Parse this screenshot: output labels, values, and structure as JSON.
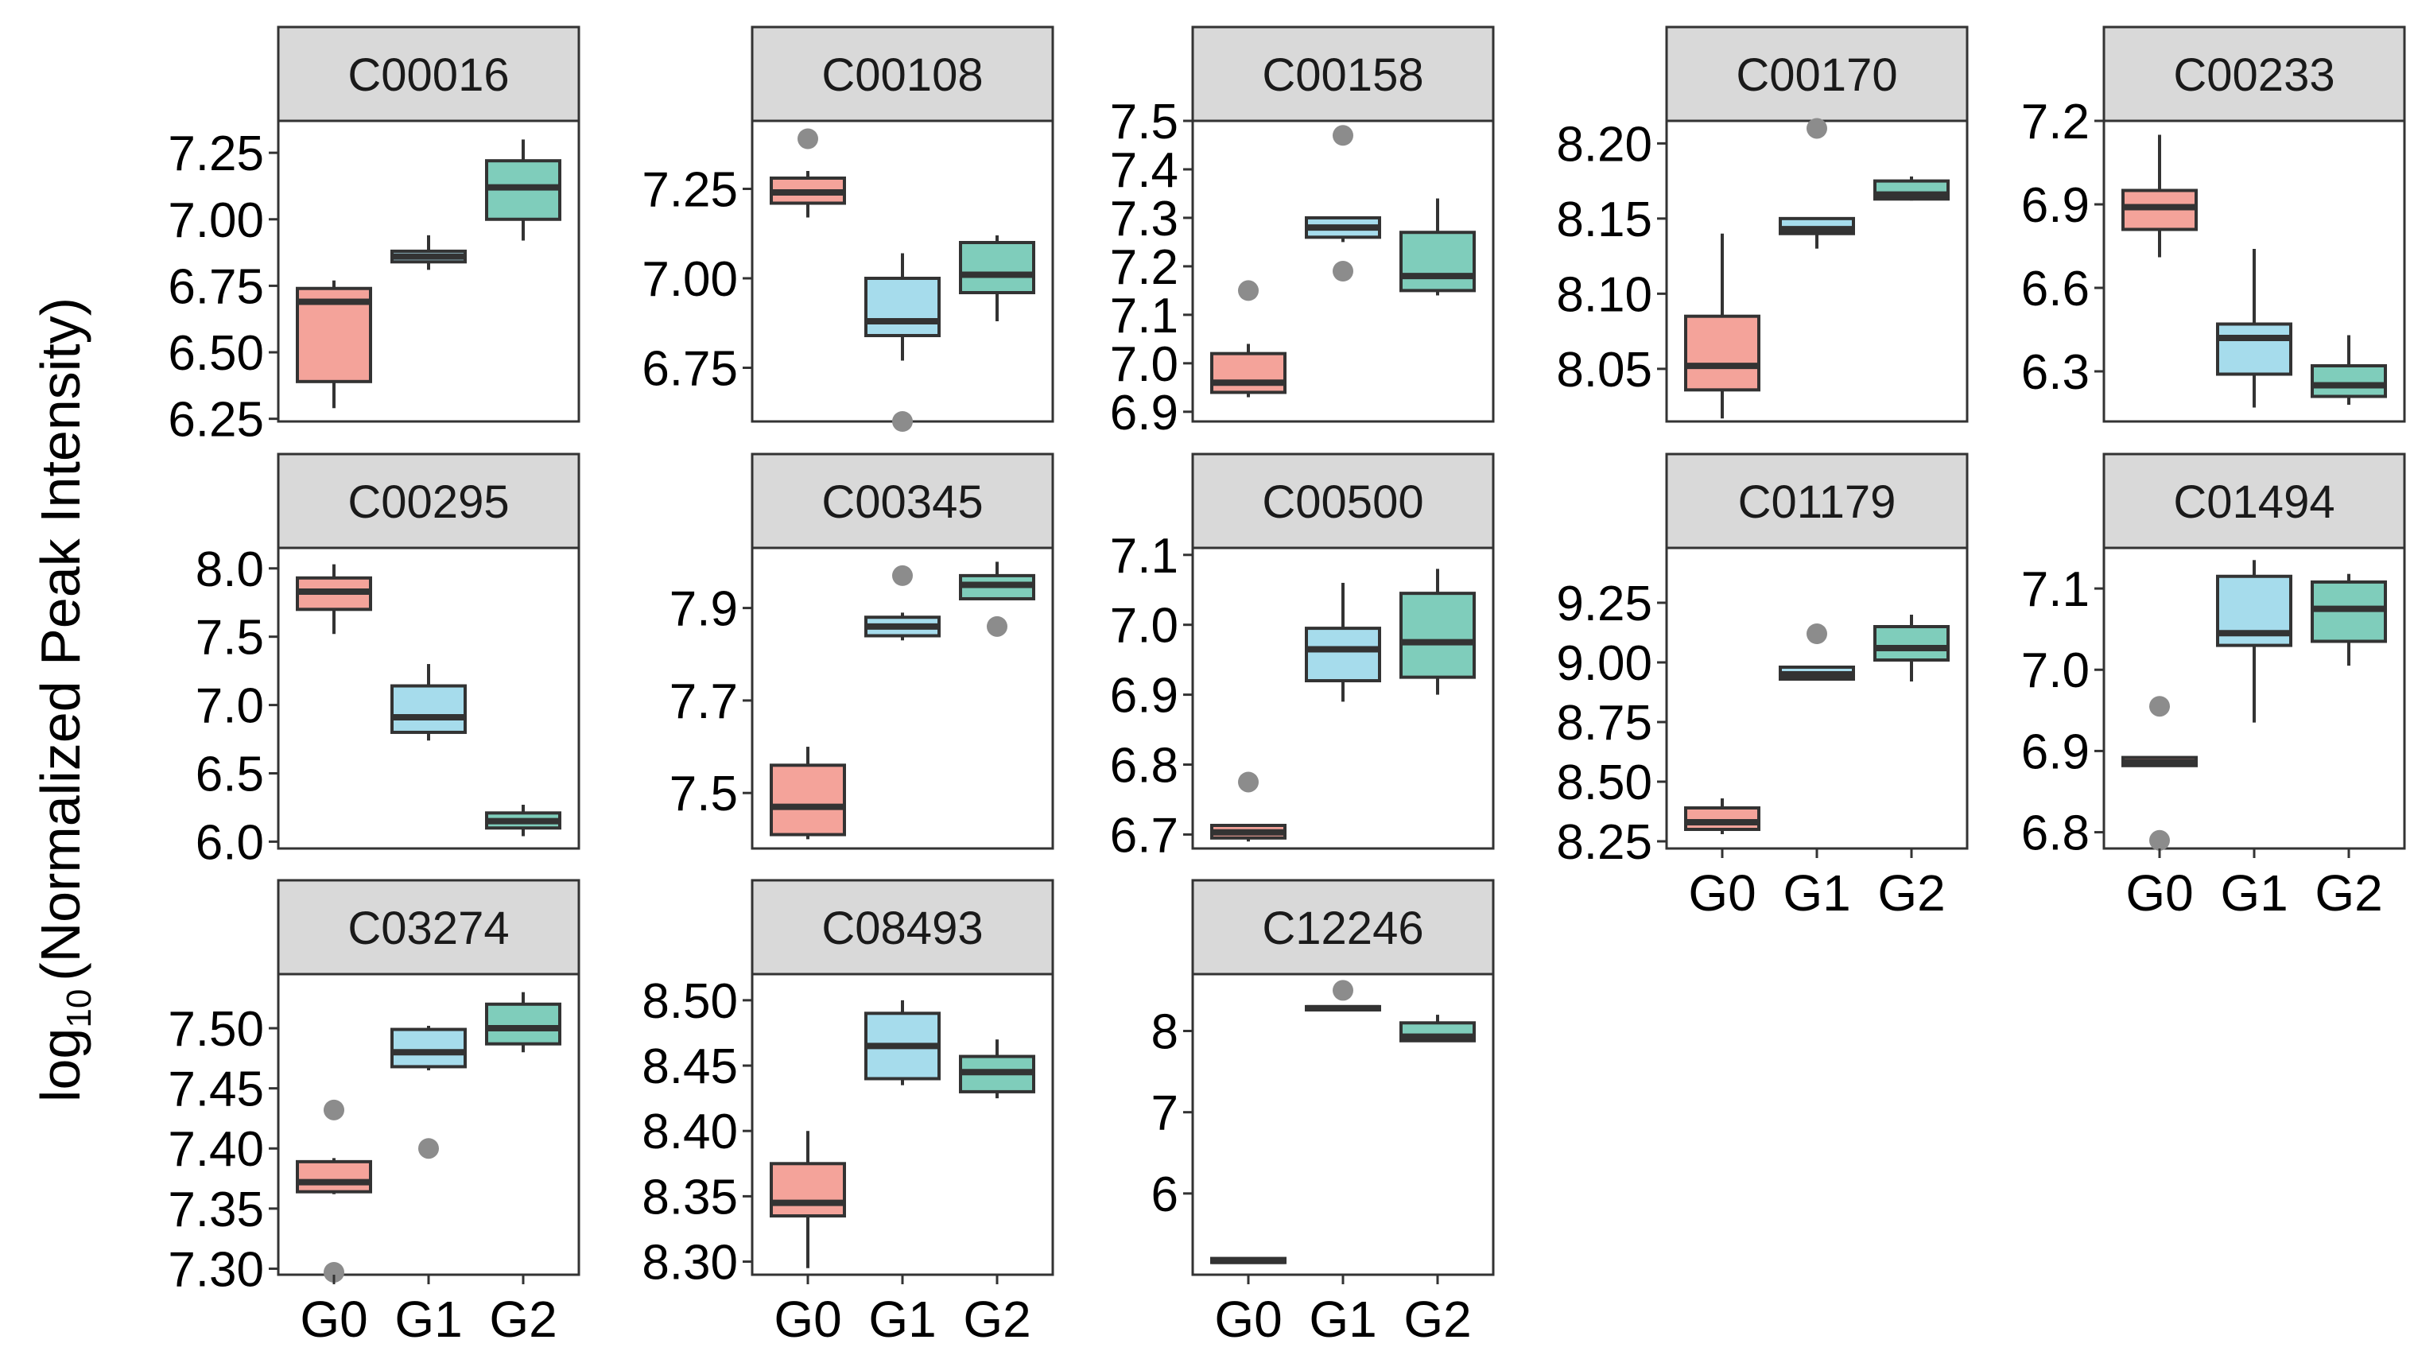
{
  "chart_data": {
    "type": "boxplot",
    "ylabel_prefix": "log",
    "ylabel_subscript": "10",
    "ylabel_rest": "(Normalized Peak Intensity)",
    "groups": [
      "G0",
      "G1",
      "G2"
    ],
    "group_colors": {
      "G0": "#f4a39a",
      "G1": "#a6dcec",
      "G2": "#7fcdbb"
    },
    "panels": [
      {
        "title": "C00016",
        "ylim": [
          6.24,
          7.37
        ],
        "ticks": [
          6.25,
          6.5,
          6.75,
          7.0,
          7.25
        ],
        "tick_labels": [
          "6.25",
          "6.50",
          "6.75",
          "7.00",
          "7.25"
        ],
        "boxes": [
          {
            "group": "G0",
            "wlo": 6.29,
            "q1": 6.39,
            "med": 6.69,
            "q3": 6.74,
            "whi": 6.77,
            "outliers": []
          },
          {
            "group": "G1",
            "wlo": 6.81,
            "q1": 6.84,
            "med": 6.86,
            "q3": 6.88,
            "whi": 6.94,
            "outliers": []
          },
          {
            "group": "G2",
            "wlo": 6.92,
            "q1": 7.0,
            "med": 7.12,
            "q3": 7.22,
            "whi": 7.3,
            "outliers": []
          }
        ]
      },
      {
        "title": "C00108",
        "ylim": [
          6.6,
          7.44
        ],
        "ticks": [
          6.75,
          7.0,
          7.25
        ],
        "tick_labels": [
          "6.75",
          "7.00",
          "7.25"
        ],
        "boxes": [
          {
            "group": "G0",
            "wlo": 7.17,
            "q1": 7.21,
            "med": 7.24,
            "q3": 7.28,
            "whi": 7.3,
            "outliers": [
              7.39
            ]
          },
          {
            "group": "G1",
            "wlo": 6.77,
            "q1": 6.84,
            "med": 6.88,
            "q3": 7.0,
            "whi": 7.07,
            "outliers": [
              6.6
            ]
          },
          {
            "group": "G2",
            "wlo": 6.88,
            "q1": 6.96,
            "med": 7.01,
            "q3": 7.1,
            "whi": 7.12,
            "outliers": []
          }
        ]
      },
      {
        "title": "C00158",
        "ylim": [
          6.88,
          7.5
        ],
        "ticks": [
          6.9,
          7.0,
          7.1,
          7.2,
          7.3,
          7.4,
          7.5
        ],
        "tick_labels": [
          "6.9",
          "7.0",
          "7.1",
          "7.2",
          "7.3",
          "7.4",
          "7.5"
        ],
        "boxes": [
          {
            "group": "G0",
            "wlo": 6.93,
            "q1": 6.94,
            "med": 6.96,
            "q3": 7.02,
            "whi": 7.04,
            "outliers": [
              7.15
            ]
          },
          {
            "group": "G1",
            "wlo": 7.25,
            "q1": 7.26,
            "med": 7.28,
            "q3": 7.3,
            "whi": 7.3,
            "outliers": [
              7.47,
              7.19
            ]
          },
          {
            "group": "G2",
            "wlo": 7.14,
            "q1": 7.15,
            "med": 7.18,
            "q3": 7.27,
            "whi": 7.34,
            "outliers": []
          }
        ]
      },
      {
        "title": "C00170",
        "ylim": [
          8.015,
          8.215
        ],
        "ticks": [
          8.05,
          8.1,
          8.15,
          8.2
        ],
        "tick_labels": [
          "8.05",
          "8.10",
          "8.15",
          "8.20"
        ],
        "boxes": [
          {
            "group": "G0",
            "wlo": 8.017,
            "q1": 8.036,
            "med": 8.052,
            "q3": 8.085,
            "whi": 8.14,
            "outliers": []
          },
          {
            "group": "G1",
            "wlo": 8.13,
            "q1": 8.14,
            "med": 8.143,
            "q3": 8.15,
            "whi": 8.15,
            "outliers": [
              8.21
            ]
          },
          {
            "group": "G2",
            "wlo": 8.162,
            "q1": 8.163,
            "med": 8.166,
            "q3": 8.175,
            "whi": 8.178,
            "outliers": []
          }
        ]
      },
      {
        "title": "C00233",
        "ylim": [
          6.12,
          7.2
        ],
        "ticks": [
          6.3,
          6.6,
          6.9,
          7.2
        ],
        "tick_labels": [
          "6.3",
          "6.6",
          "6.9",
          "7.2"
        ],
        "boxes": [
          {
            "group": "G0",
            "wlo": 6.71,
            "q1": 6.81,
            "med": 6.89,
            "q3": 6.95,
            "whi": 7.15,
            "outliers": []
          },
          {
            "group": "G1",
            "wlo": 6.17,
            "q1": 6.29,
            "med": 6.42,
            "q3": 6.47,
            "whi": 6.74,
            "outliers": []
          },
          {
            "group": "G2",
            "wlo": 6.18,
            "q1": 6.21,
            "med": 6.25,
            "q3": 6.32,
            "whi": 6.43,
            "outliers": []
          }
        ]
      },
      {
        "title": "C00295",
        "ylim": [
          5.95,
          8.15
        ],
        "ticks": [
          6.0,
          6.5,
          7.0,
          7.5,
          8.0
        ],
        "tick_labels": [
          "6.0",
          "6.5",
          "7.0",
          "7.5",
          "8.0"
        ],
        "boxes": [
          {
            "group": "G0",
            "wlo": 7.52,
            "q1": 7.7,
            "med": 7.83,
            "q3": 7.93,
            "whi": 8.03,
            "outliers": []
          },
          {
            "group": "G1",
            "wlo": 6.74,
            "q1": 6.8,
            "med": 6.91,
            "q3": 7.14,
            "whi": 7.3,
            "outliers": []
          },
          {
            "group": "G2",
            "wlo": 6.04,
            "q1": 6.1,
            "med": 6.15,
            "q3": 6.21,
            "whi": 6.27,
            "outliers": []
          }
        ]
      },
      {
        "title": "C00345",
        "ylim": [
          7.38,
          8.03
        ],
        "ticks": [
          7.5,
          7.7,
          7.9
        ],
        "tick_labels": [
          "7.5",
          "7.7",
          "7.9"
        ],
        "boxes": [
          {
            "group": "G0",
            "wlo": 7.4,
            "q1": 7.41,
            "med": 7.47,
            "q3": 7.56,
            "whi": 7.6,
            "outliers": []
          },
          {
            "group": "G1",
            "wlo": 7.83,
            "q1": 7.84,
            "med": 7.86,
            "q3": 7.88,
            "whi": 7.89,
            "outliers": [
              7.97
            ]
          },
          {
            "group": "G2",
            "wlo": 7.92,
            "q1": 7.92,
            "med": 7.95,
            "q3": 7.97,
            "whi": 8.0,
            "outliers": [
              7.86
            ]
          }
        ]
      },
      {
        "title": "C00500",
        "ylim": [
          6.68,
          7.11
        ],
        "ticks": [
          6.7,
          6.8,
          6.9,
          7.0,
          7.1
        ],
        "tick_labels": [
          "6.7",
          "6.8",
          "6.9",
          "7.0",
          "7.1"
        ],
        "boxes": [
          {
            "group": "G0",
            "wlo": 6.69,
            "q1": 6.695,
            "med": 6.703,
            "q3": 6.713,
            "whi": 6.715,
            "outliers": [
              6.775
            ]
          },
          {
            "group": "G1",
            "wlo": 6.89,
            "q1": 6.92,
            "med": 6.965,
            "q3": 6.995,
            "whi": 7.06,
            "outliers": []
          },
          {
            "group": "G2",
            "wlo": 6.9,
            "q1": 6.925,
            "med": 6.975,
            "q3": 7.045,
            "whi": 7.08,
            "outliers": []
          }
        ]
      },
      {
        "title": "C01179",
        "ylim": [
          8.22,
          9.48
        ],
        "ticks": [
          8.25,
          8.5,
          8.75,
          9.0,
          9.25
        ],
        "tick_labels": [
          "8.25",
          "8.50",
          "8.75",
          "9.00",
          "9.25"
        ],
        "boxes": [
          {
            "group": "G0",
            "wlo": 8.28,
            "q1": 8.3,
            "med": 8.33,
            "q3": 8.39,
            "whi": 8.43,
            "outliers": []
          },
          {
            "group": "G1",
            "wlo": 8.93,
            "q1": 8.93,
            "med": 8.95,
            "q3": 8.98,
            "whi": 8.98,
            "outliers": [
              9.12
            ]
          },
          {
            "group": "G2",
            "wlo": 8.92,
            "q1": 9.01,
            "med": 9.06,
            "q3": 9.15,
            "whi": 9.2,
            "outliers": []
          }
        ]
      },
      {
        "title": "C01494",
        "ylim": [
          6.78,
          7.15
        ],
        "ticks": [
          6.8,
          6.9,
          7.0,
          7.1
        ],
        "tick_labels": [
          "6.8",
          "6.9",
          "7.0",
          "7.1"
        ],
        "boxes": [
          {
            "group": "G0",
            "wlo": 6.882,
            "q1": 6.882,
            "med": 6.886,
            "q3": 6.892,
            "whi": 6.892,
            "outliers": [
              6.955,
              6.79
            ]
          },
          {
            "group": "G1",
            "wlo": 6.935,
            "q1": 7.03,
            "med": 7.045,
            "q3": 7.115,
            "whi": 7.135,
            "outliers": []
          },
          {
            "group": "G2",
            "wlo": 7.005,
            "q1": 7.035,
            "med": 7.075,
            "q3": 7.108,
            "whi": 7.118,
            "outliers": []
          }
        ]
      },
      {
        "title": "C03274",
        "ylim": [
          7.295,
          7.545
        ],
        "ticks": [
          7.3,
          7.35,
          7.4,
          7.45,
          7.5
        ],
        "tick_labels": [
          "7.30",
          "7.35",
          "7.40",
          "7.45",
          "7.50"
        ],
        "boxes": [
          {
            "group": "G0",
            "wlo": 7.362,
            "q1": 7.364,
            "med": 7.372,
            "q3": 7.389,
            "whi": 7.392,
            "outliers": [
              7.432,
              7.297
            ]
          },
          {
            "group": "G1",
            "wlo": 7.465,
            "q1": 7.468,
            "med": 7.48,
            "q3": 7.499,
            "whi": 7.502,
            "outliers": [
              7.4
            ]
          },
          {
            "group": "G2",
            "wlo": 7.48,
            "q1": 7.487,
            "med": 7.5,
            "q3": 7.52,
            "whi": 7.53,
            "outliers": []
          }
        ]
      },
      {
        "title": "C08493",
        "ylim": [
          8.29,
          8.52
        ],
        "ticks": [
          8.3,
          8.35,
          8.4,
          8.45,
          8.5
        ],
        "tick_labels": [
          "8.30",
          "8.35",
          "8.40",
          "8.45",
          "8.50"
        ],
        "boxes": [
          {
            "group": "G0",
            "wlo": 8.295,
            "q1": 8.335,
            "med": 8.345,
            "q3": 8.375,
            "whi": 8.4,
            "outliers": []
          },
          {
            "group": "G1",
            "wlo": 8.435,
            "q1": 8.44,
            "med": 8.465,
            "q3": 8.49,
            "whi": 8.5,
            "outliers": []
          },
          {
            "group": "G2",
            "wlo": 8.425,
            "q1": 8.43,
            "med": 8.445,
            "q3": 8.457,
            "whi": 8.47,
            "outliers": []
          }
        ]
      },
      {
        "title": "C12246",
        "ylim": [
          5.0,
          8.7
        ],
        "ticks": [
          6,
          7,
          8
        ],
        "tick_labels": [
          "6",
          "7",
          "8"
        ],
        "boxes": [
          {
            "group": "G0",
            "wlo": 5.15,
            "q1": 5.15,
            "med": 5.17,
            "q3": 5.2,
            "whi": 5.2,
            "outliers": []
          },
          {
            "group": "G1",
            "wlo": 8.26,
            "q1": 8.26,
            "med": 8.28,
            "q3": 8.3,
            "whi": 8.3,
            "outliers": [
              8.5
            ]
          },
          {
            "group": "G2",
            "wlo": 7.88,
            "q1": 7.88,
            "med": 7.93,
            "q3": 8.1,
            "whi": 8.2,
            "outliers": []
          }
        ]
      }
    ]
  }
}
